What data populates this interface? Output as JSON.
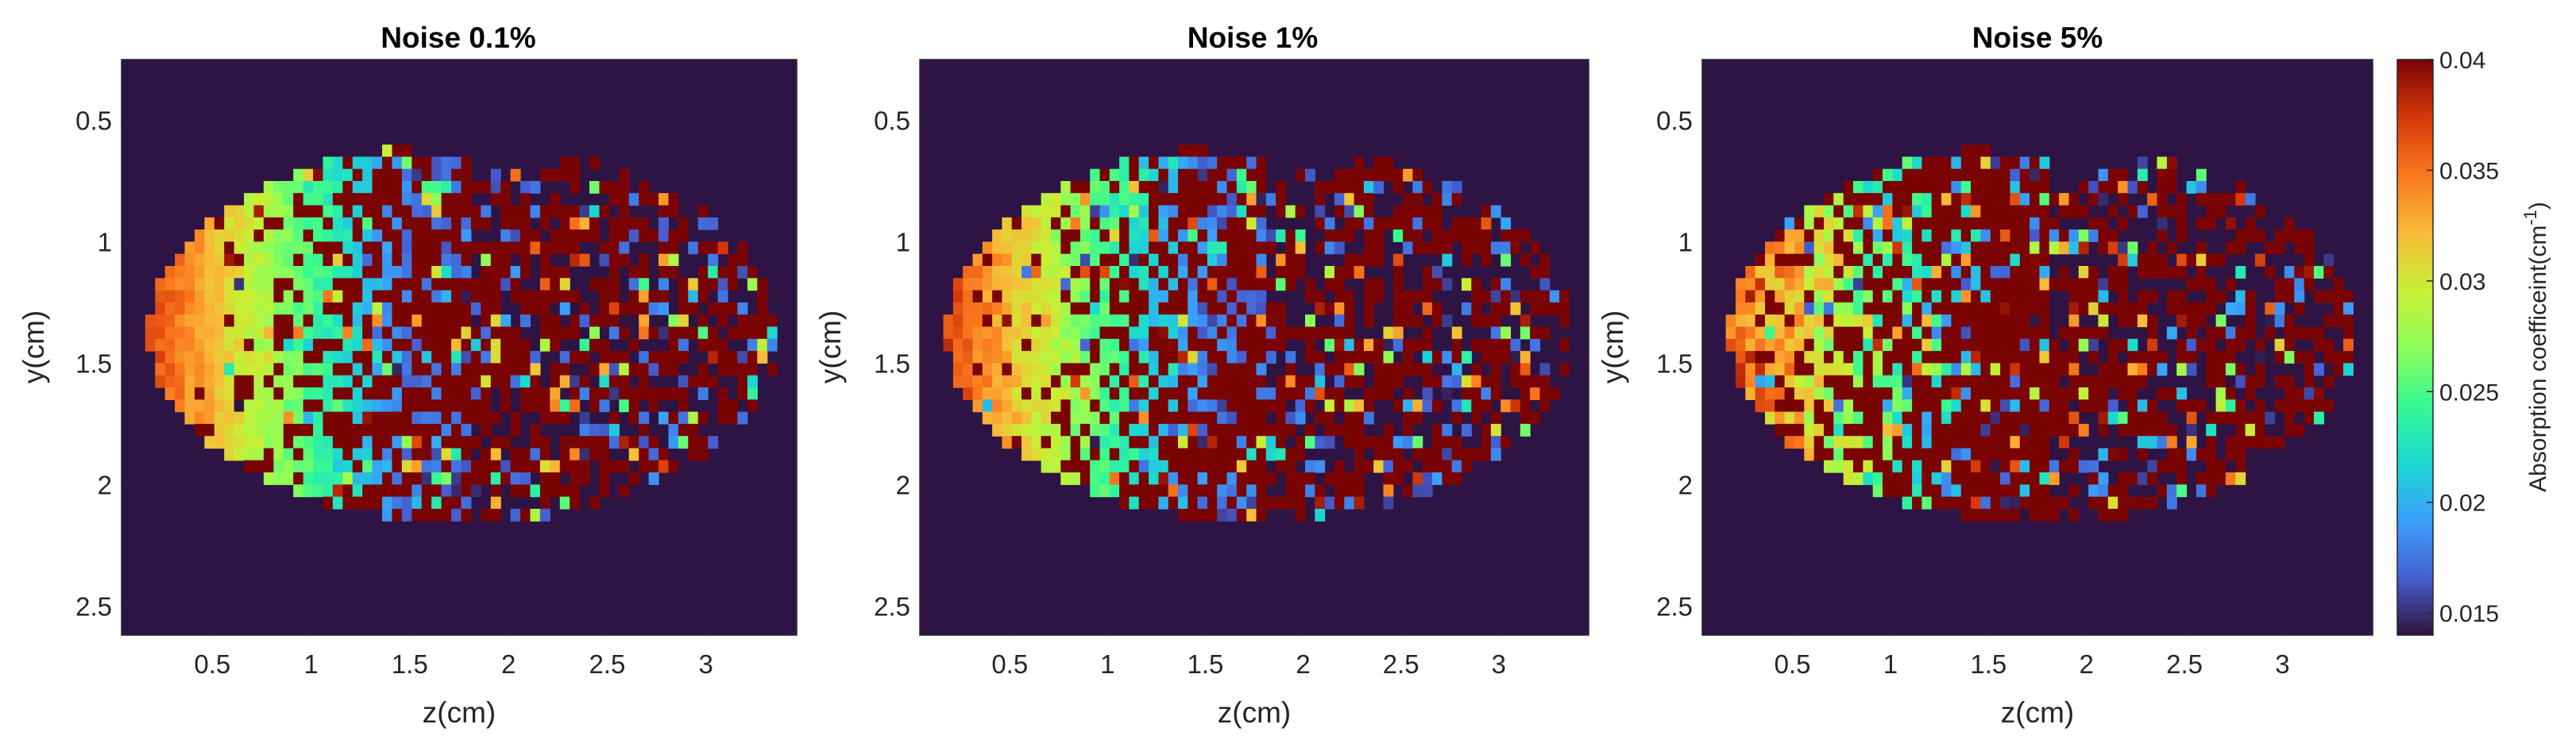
{
  "chart_data": [
    {
      "type": "heatmap",
      "title": "Noise 0.1%",
      "xlabel": "z(cm)",
      "ylabel": "y(cm)",
      "xlim": [
        0.04,
        3.46
      ],
      "ylim": [
        0.25,
        2.62
      ],
      "y_reversed": true,
      "xticks": [
        "0.5",
        "1",
        "1.5",
        "2",
        "2.5",
        "3"
      ],
      "yticks": [
        "0.5",
        "1",
        "1.5",
        "2",
        "2.5"
      ],
      "noise_level": 0.001,
      "background_value": 0.014,
      "value_range": [
        0.014,
        0.04
      ]
    },
    {
      "type": "heatmap",
      "title": "Noise 1%",
      "xlabel": "z(cm)",
      "ylabel": "y(cm)",
      "xlim": [
        0.04,
        3.46
      ],
      "ylim": [
        0.25,
        2.62
      ],
      "y_reversed": true,
      "xticks": [
        "0.5",
        "1",
        "1.5",
        "2",
        "2.5",
        "3"
      ],
      "yticks": [
        "0.5",
        "1",
        "1.5",
        "2",
        "2.5"
      ],
      "noise_level": 0.01,
      "background_value": 0.014,
      "value_range": [
        0.014,
        0.04
      ]
    },
    {
      "type": "heatmap",
      "title": "Noise 5%",
      "xlabel": "z(cm)",
      "ylabel": "y(cm)",
      "xlim": [
        0.04,
        3.46
      ],
      "ylim": [
        0.25,
        2.62
      ],
      "y_reversed": true,
      "xticks": [
        "0.5",
        "1",
        "1.5",
        "2",
        "2.5",
        "3"
      ],
      "yticks": [
        "0.5",
        "1",
        "1.5",
        "2",
        "2.5"
      ],
      "noise_level": 0.05,
      "background_value": 0.014,
      "value_range": [
        0.014,
        0.04
      ]
    }
  ],
  "colorbar": {
    "label_main": "Absorption coefficeint(cm",
    "label_superscript": "-1",
    "label_close": ")",
    "range": [
      0.014,
      0.04
    ],
    "colormap": "turbo",
    "ticks": [
      "0.015",
      "0.02",
      "0.025",
      "0.03",
      "0.035",
      "0.04"
    ]
  },
  "colors": {
    "background_cell": "#2d1445",
    "axis": "#262626",
    "title": "#000000"
  }
}
